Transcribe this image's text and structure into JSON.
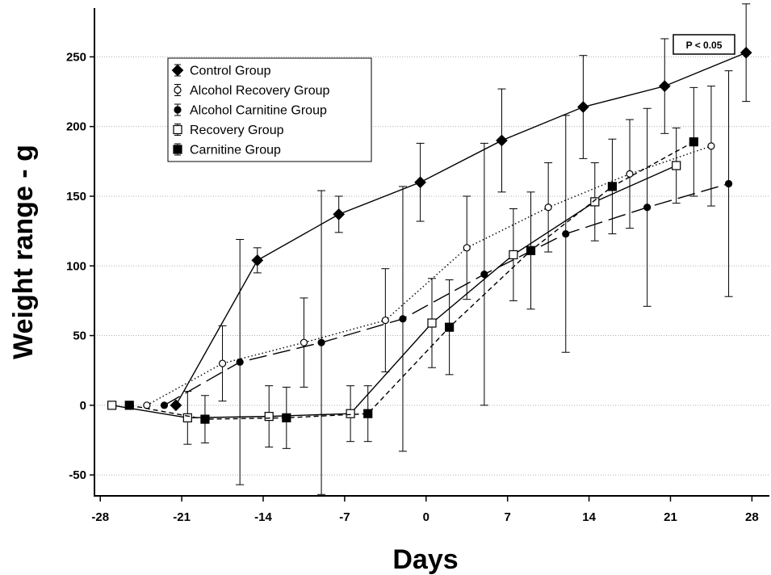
{
  "chart_data": {
    "type": "line",
    "title": "",
    "xlabel": "Days",
    "ylabel": "Weight range - g",
    "xlim": [
      -28.5,
      29.5
    ],
    "ylim": [
      -65,
      285
    ],
    "x_ticks": [
      -28,
      -21,
      -14,
      -7,
      0,
      7,
      14,
      21,
      28
    ],
    "y_ticks": [
      -50,
      0,
      50,
      100,
      150,
      200,
      250
    ],
    "grid": "horizontal dotted",
    "legend_position": "top-left",
    "annotation": "P < 0.05",
    "series": [
      {
        "name": "Control Group",
        "marker": "diamond-filled",
        "line": "solid",
        "points": [
          {
            "x": -21.5,
            "y": 0,
            "err": 0
          },
          {
            "x": -14.5,
            "y": 104,
            "err": 9
          },
          {
            "x": -7.5,
            "y": 137,
            "err": 13
          },
          {
            "x": -0.5,
            "y": 160,
            "err": 28
          },
          {
            "x": 6.5,
            "y": 190,
            "err": 37
          },
          {
            "x": 13.5,
            "y": 214,
            "err": 37
          },
          {
            "x": 20.5,
            "y": 229,
            "err": 34
          },
          {
            "x": 27.5,
            "y": 253,
            "err": 35
          }
        ]
      },
      {
        "name": "Alcohol Recovery Group",
        "marker": "circle-open",
        "line": "dotted",
        "points": [
          {
            "x": -24,
            "y": 0,
            "err": 0
          },
          {
            "x": -17.5,
            "y": 30,
            "err": 27
          },
          {
            "x": -10.5,
            "y": 45,
            "err": 32
          },
          {
            "x": -3.5,
            "y": 61,
            "err": 37
          },
          {
            "x": 3.5,
            "y": 113,
            "err": 37
          },
          {
            "x": 10.5,
            "y": 142,
            "err": 32
          },
          {
            "x": 17.5,
            "y": 166,
            "err": 39
          },
          {
            "x": 24.5,
            "y": 186,
            "err": 43
          }
        ]
      },
      {
        "name": "Alcohol Carnitine Group",
        "marker": "circle-filled",
        "line": "long-dash",
        "points": [
          {
            "x": -22.5,
            "y": 0,
            "err": 0
          },
          {
            "x": -16,
            "y": 31,
            "err": 88
          },
          {
            "x": -9,
            "y": 45,
            "err": 109
          },
          {
            "x": -2,
            "y": 62,
            "err": 95
          },
          {
            "x": 5,
            "y": 94,
            "err": 94
          },
          {
            "x": 12,
            "y": 123,
            "err": 85
          },
          {
            "x": 19,
            "y": 142,
            "err": 71
          },
          {
            "x": 26,
            "y": 159,
            "err": 81
          }
        ]
      },
      {
        "name": "Recovery Group",
        "marker": "square-open",
        "line": "solid",
        "points": [
          {
            "x": -27,
            "y": 0,
            "err": 0
          },
          {
            "x": -20.5,
            "y": -9,
            "err": 19
          },
          {
            "x": -13.5,
            "y": -8,
            "err": 22
          },
          {
            "x": -6.5,
            "y": -6,
            "err": 20
          },
          {
            "x": 0.5,
            "y": 59,
            "err": 32
          },
          {
            "x": 7.5,
            "y": 108,
            "err": 33
          },
          {
            "x": 14.5,
            "y": 146,
            "err": 28
          },
          {
            "x": 21.5,
            "y": 172,
            "err": 27
          }
        ]
      },
      {
        "name": "Carnitine Group",
        "marker": "square-filled",
        "line": "short-dash",
        "points": [
          {
            "x": -25.5,
            "y": 0,
            "err": 0
          },
          {
            "x": -19,
            "y": -10,
            "err": 17
          },
          {
            "x": -12,
            "y": -9,
            "err": 22
          },
          {
            "x": -5,
            "y": -6,
            "err": 20
          },
          {
            "x": 2,
            "y": 56,
            "err": 34
          },
          {
            "x": 9,
            "y": 111,
            "err": 42
          },
          {
            "x": 16,
            "y": 157,
            "err": 34
          },
          {
            "x": 23,
            "y": 189,
            "err": 39
          }
        ]
      }
    ]
  }
}
